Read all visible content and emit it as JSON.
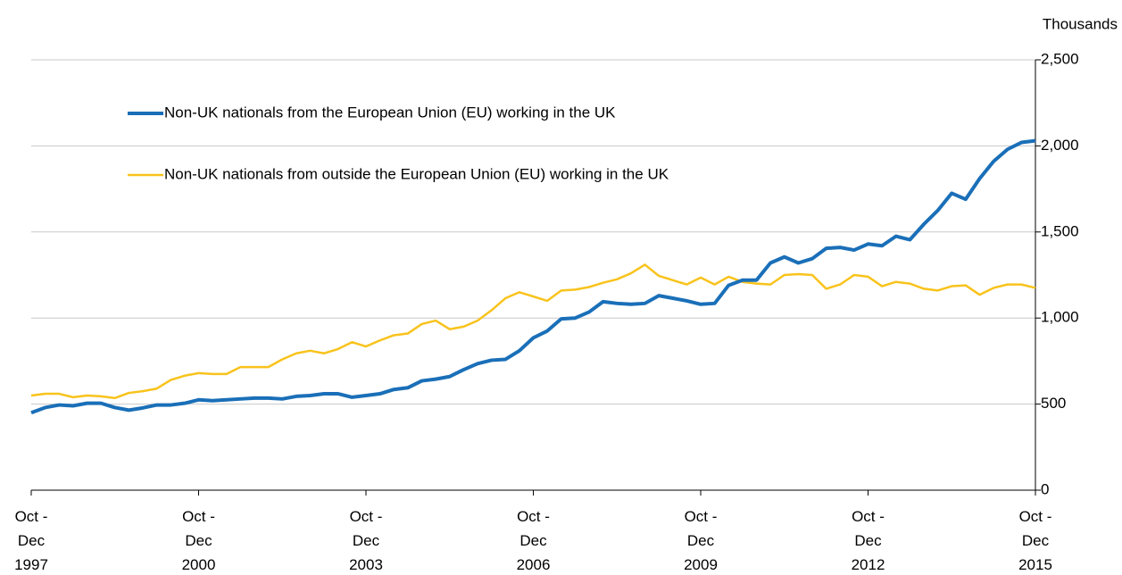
{
  "chart_data": {
    "type": "line",
    "y_unit": "Thousands",
    "categories": [
      "Oct -\nDec\n1997",
      null,
      null,
      null,
      null,
      null,
      null,
      null,
      null,
      null,
      null,
      null,
      "Oct -\nDec\n2000",
      null,
      null,
      null,
      null,
      null,
      null,
      null,
      null,
      null,
      null,
      null,
      "Oct -\nDec\n2003",
      null,
      null,
      null,
      null,
      null,
      null,
      null,
      null,
      null,
      null,
      null,
      "Oct -\nDec\n2006",
      null,
      null,
      null,
      null,
      null,
      null,
      null,
      null,
      null,
      null,
      null,
      "Oct -\nDec\n2009",
      null,
      null,
      null,
      null,
      null,
      null,
      null,
      null,
      null,
      null,
      null,
      "Oct -\nDec\n2012",
      null,
      null,
      null,
      null,
      null,
      null,
      null,
      null,
      null,
      null,
      null,
      "Oct -\nDec\n2015"
    ],
    "series": [
      {
        "name": "Non-UK nationals from the European Union (EU) working in the UK",
        "color": "#1a6fb8",
        "values": [
          450,
          480,
          495,
          490,
          505,
          505,
          480,
          465,
          478,
          495,
          495,
          505,
          525,
          520,
          525,
          530,
          535,
          535,
          530,
          545,
          550,
          560,
          560,
          540,
          550,
          560,
          585,
          595,
          635,
          645,
          660,
          700,
          735,
          755,
          760,
          810,
          885,
          925,
          995,
          1000,
          1035,
          1095,
          1085,
          1080,
          1085,
          1130,
          1115,
          1100,
          1080,
          1085,
          1190,
          1220,
          1220,
          1320,
          1355,
          1320,
          1345,
          1405,
          1410,
          1395,
          1430,
          1420,
          1475,
          1455,
          1545,
          1625,
          1725,
          1690,
          1810,
          1910,
          1980,
          2020,
          2030
        ]
      },
      {
        "name": "Non-UK nationals from outside the European Union (EU) working in the UK",
        "color": "#f8c31c",
        "values": [
          550,
          560,
          560,
          540,
          550,
          545,
          535,
          565,
          575,
          590,
          640,
          665,
          680,
          675,
          675,
          715,
          715,
          715,
          760,
          795,
          810,
          795,
          820,
          860,
          835,
          870,
          900,
          910,
          965,
          985,
          935,
          950,
          985,
          1045,
          1115,
          1150,
          1125,
          1100,
          1160,
          1165,
          1180,
          1205,
          1225,
          1260,
          1310,
          1245,
          1220,
          1195,
          1235,
          1195,
          1240,
          1210,
          1200,
          1195,
          1250,
          1255,
          1250,
          1170,
          1195,
          1250,
          1240,
          1185,
          1210,
          1200,
          1170,
          1160,
          1185,
          1190,
          1135,
          1175,
          1195,
          1195,
          1175
        ]
      }
    ],
    "ylim": [
      0,
      2500
    ],
    "yticks": [
      0,
      {
        "value": 500,
        "label": "500"
      },
      {
        "value": 1000,
        "label": "1,000"
      },
      {
        "value": 1500,
        "label": "1,500"
      },
      {
        "value": 2000,
        "label": "2,000"
      },
      {
        "value": 2500,
        "label": "2,500"
      }
    ],
    "grid": true
  }
}
